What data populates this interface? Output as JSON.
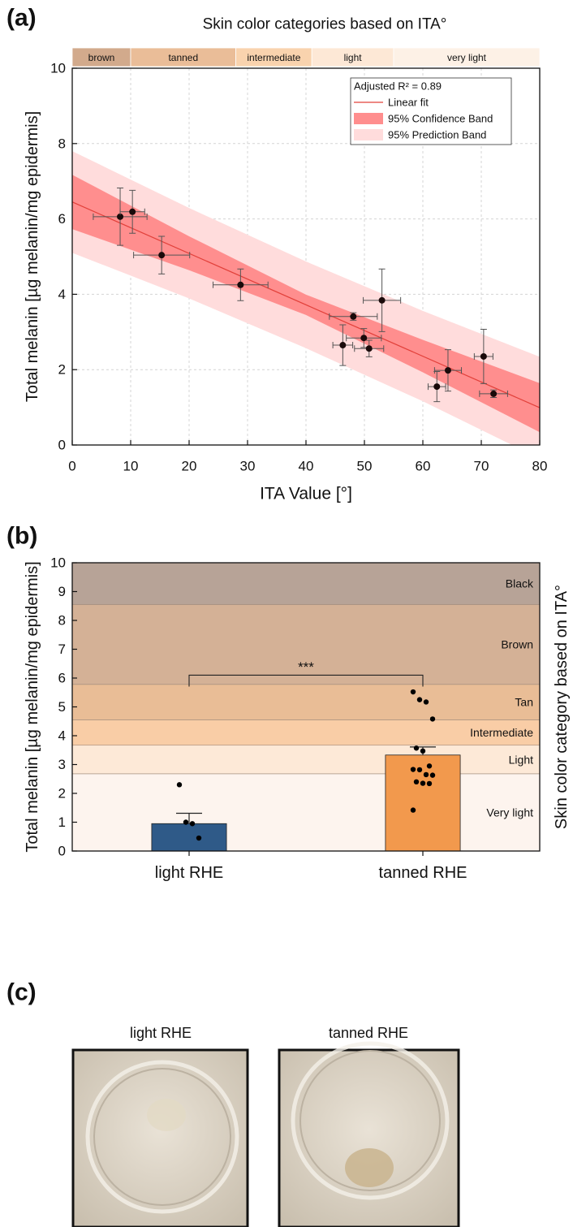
{
  "panel_labels": [
    "(a)",
    "(b)",
    "(c)"
  ],
  "photos": {
    "labels": [
      "light RHE",
      "tanned RHE"
    ]
  },
  "chart_data": [
    {
      "type": "scatter",
      "title": "Skin color categories based on ITA°",
      "xlabel": "ITA Value [°]",
      "ylabel": "Total melanin [µg melanin/mg epidermis]",
      "xlim": [
        0,
        80
      ],
      "ylim": [
        0,
        10
      ],
      "xticks": [
        0,
        10,
        20,
        30,
        40,
        50,
        60,
        70,
        80
      ],
      "yticks": [
        0,
        2,
        4,
        6,
        8,
        10
      ],
      "grid": true,
      "legend": "top-right",
      "annotation": "Adjusted R² = 0.89",
      "category_bands": {
        "labels": [
          "brown",
          "tanned",
          "intermediate",
          "light",
          "very light"
        ],
        "edges": [
          0,
          10,
          28,
          41,
          55,
          80
        ],
        "colors": [
          "#d2aa8c",
          "#eabd98",
          "#f9d3ae",
          "#fde8d6",
          "#fdf1e6"
        ]
      },
      "points": {
        "color": "#1a0a0a",
        "x": [
          8.2,
          10.3,
          15.3,
          28.8,
          48.1,
          53.0,
          46.3,
          49.9,
          50.8,
          62.4,
          64.3,
          70.4,
          72.1
        ],
        "y": [
          6.06,
          6.19,
          5.04,
          4.25,
          3.41,
          3.84,
          2.65,
          2.84,
          2.56,
          1.55,
          1.98,
          2.35,
          1.36
        ],
        "xerr": [
          4.6,
          2.1,
          4.8,
          4.7,
          4.1,
          3.2,
          1.7,
          3.0,
          2.5,
          1.5,
          2.3,
          1.6,
          2.4
        ],
        "yerr": [
          0.76,
          0.57,
          0.5,
          0.42,
          0.1,
          0.83,
          0.54,
          0.25,
          0.22,
          0.4,
          0.55,
          0.72,
          0.1
        ]
      },
      "fit": {
        "name": "Linear fit",
        "color": "#e2403a",
        "x": [
          0,
          80
        ],
        "y": [
          6.45,
          0.99
        ]
      },
      "confidence_band": {
        "name": "95% Confidence Band",
        "color": "#ff8e8e",
        "x": [
          0,
          20,
          40,
          60,
          80
        ],
        "lower": [
          5.73,
          4.64,
          3.45,
          1.93,
          0.34
        ],
        "upper": [
          7.17,
          5.54,
          3.99,
          2.79,
          1.64
        ]
      },
      "prediction_band": {
        "name": "95% Prediction Band",
        "color": "#ffdcdc",
        "x": [
          0,
          20,
          40,
          60,
          80
        ],
        "lower": [
          5.1,
          3.89,
          2.57,
          1.16,
          -0.36
        ],
        "upper": [
          7.8,
          6.29,
          4.87,
          3.56,
          2.34
        ]
      }
    },
    {
      "type": "bar",
      "ylabel": "Total melanin [µg melanin/mg epidermis]",
      "y2label": "Skin color category based on ITA°",
      "categories": [
        "light RHE",
        "tanned RHE"
      ],
      "values": [
        0.95,
        3.33
      ],
      "errors": [
        0.36,
        0.28
      ],
      "colors": [
        "#2f5a88",
        "#f2994d"
      ],
      "ylim": [
        0,
        10
      ],
      "yticks": [
        0,
        1,
        2,
        3,
        4,
        5,
        6,
        7,
        8,
        9,
        10
      ],
      "points": [
        [
          2.3,
          1.0,
          0.95,
          0.45
        ],
        [
          5.52,
          5.25,
          5.17,
          4.58,
          3.57,
          3.47,
          2.95,
          2.83,
          2.82,
          2.65,
          2.63,
          2.4,
          2.35,
          2.34,
          1.42
        ]
      ],
      "points_color": "#000000",
      "category_bands": {
        "labels": [
          "Very light",
          "Light",
          "Intermediate",
          "Tan",
          "Brown",
          "Black"
        ],
        "edges": [
          0,
          2.68,
          3.67,
          4.55,
          5.78,
          8.55,
          10
        ],
        "colors": [
          "#fdf4ee",
          "#fde9d7",
          "#f9cda6",
          "#e9bd96",
          "#d4b196",
          "#b7a397"
        ]
      },
      "significance": {
        "label": "***",
        "value": 6.1
      }
    }
  ]
}
